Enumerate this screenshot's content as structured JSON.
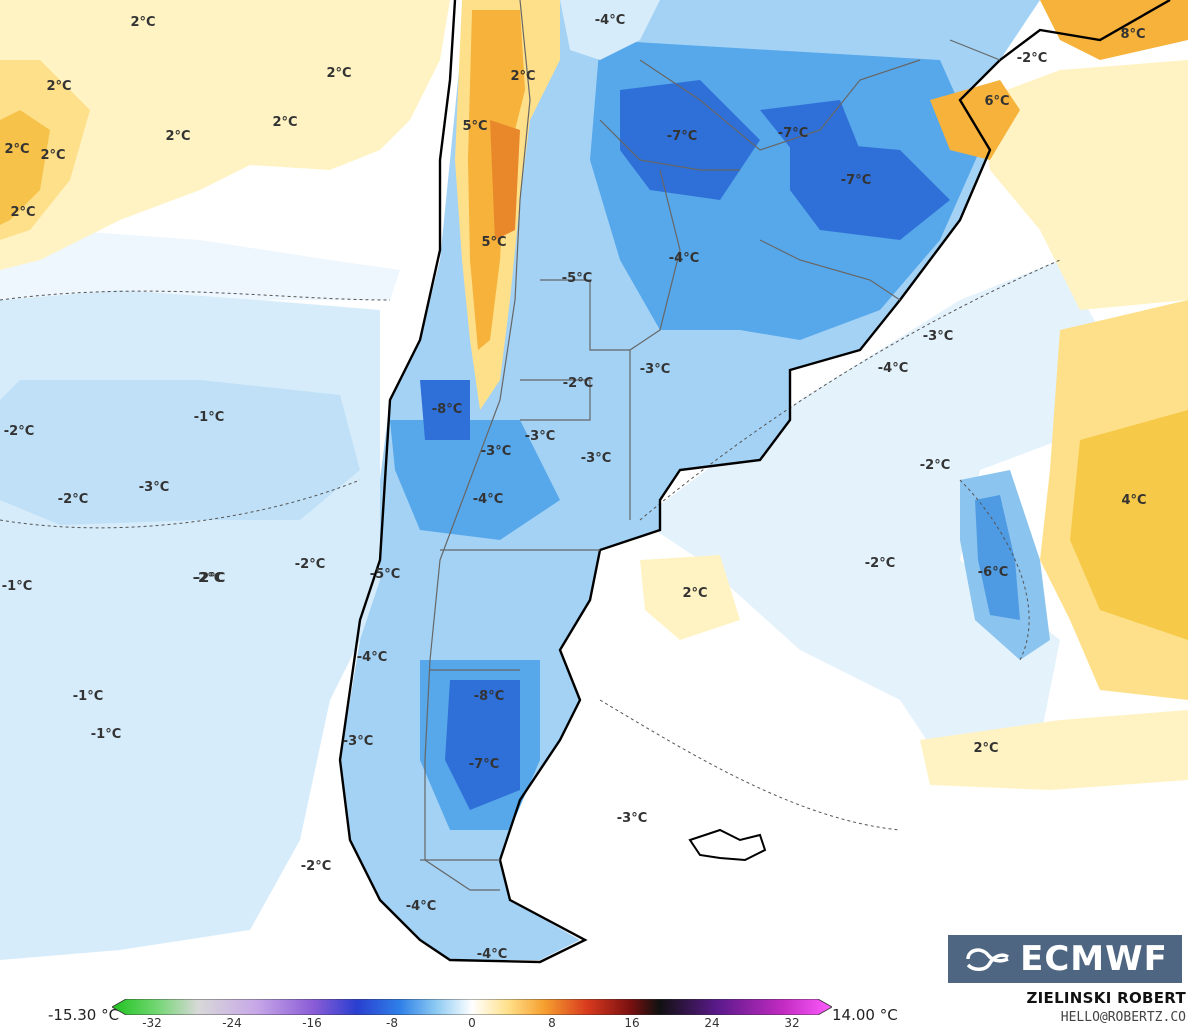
{
  "map": {
    "temperature_labels": [
      {
        "text": "2°C"
      },
      {
        "text": "2°C"
      },
      {
        "text": "2°C"
      },
      {
        "text": "2°C"
      },
      {
        "text": "2°C"
      },
      {
        "text": "2°C"
      },
      {
        "text": "2°C"
      },
      {
        "text": "2°C"
      },
      {
        "text": "-4°C"
      },
      {
        "text": "2°C"
      },
      {
        "text": "5°C"
      },
      {
        "text": "5°C"
      },
      {
        "text": "-7°C"
      },
      {
        "text": "-7°C"
      },
      {
        "text": "-7°C"
      },
      {
        "text": "-2°C"
      },
      {
        "text": "6°C"
      },
      {
        "text": "8°C"
      },
      {
        "text": "-4°C"
      },
      {
        "text": "-5°C"
      },
      {
        "text": "-3°C"
      },
      {
        "text": "-3°C"
      },
      {
        "text": "-3°C"
      },
      {
        "text": "-4°C"
      },
      {
        "text": "-2°C"
      },
      {
        "text": "-8°C"
      },
      {
        "text": "-1°C"
      },
      {
        "text": "-2°C"
      },
      {
        "text": "-3°C"
      },
      {
        "text": "-3°C"
      },
      {
        "text": "-3°C"
      },
      {
        "text": "-2°C"
      },
      {
        "text": "-2°C"
      },
      {
        "text": "-4°C"
      },
      {
        "text": "-2°C"
      },
      {
        "text": "4°C"
      },
      {
        "text": "-1°C"
      },
      {
        "text": "-2°C"
      },
      {
        "text": "-2°C"
      },
      {
        "text": "-5°C"
      },
      {
        "text": "2°C"
      },
      {
        "text": "-2°C"
      },
      {
        "text": "-6°C"
      },
      {
        "text": "-4°C"
      },
      {
        "text": "-1°C"
      },
      {
        "text": "-8°C"
      },
      {
        "text": "-1°C"
      },
      {
        "text": "-3°C"
      },
      {
        "text": "-7°C"
      },
      {
        "text": "2°C"
      },
      {
        "text": "-3°C"
      },
      {
        "text": "-2°C"
      },
      {
        "text": "-4°C"
      },
      {
        "text": "-4°C"
      }
    ],
    "colors": {
      "ocean_white": "#ffffff",
      "light_blue": "#d6ecfa",
      "mid_blue": "#a3d2f5",
      "blue": "#57a8ea",
      "deep_blue": "#2f6fd8",
      "yellow_light": "#fff3c4",
      "yellow": "#ffe08a",
      "orange": "#f6b23a",
      "coast": "#000000",
      "border": "#666666"
    }
  },
  "legend": {
    "min_label": "-15.30 °C",
    "max_label": "14.00 °C",
    "ticks": [
      "-32",
      "-24",
      "-16",
      "-8",
      "0",
      "8",
      "16",
      "24",
      "32"
    ]
  },
  "credit": {
    "author": "ZIELINSKI ROBERT",
    "email": "HELLO@ROBERTZ.CO"
  },
  "logo": {
    "text": "ECMWF"
  }
}
